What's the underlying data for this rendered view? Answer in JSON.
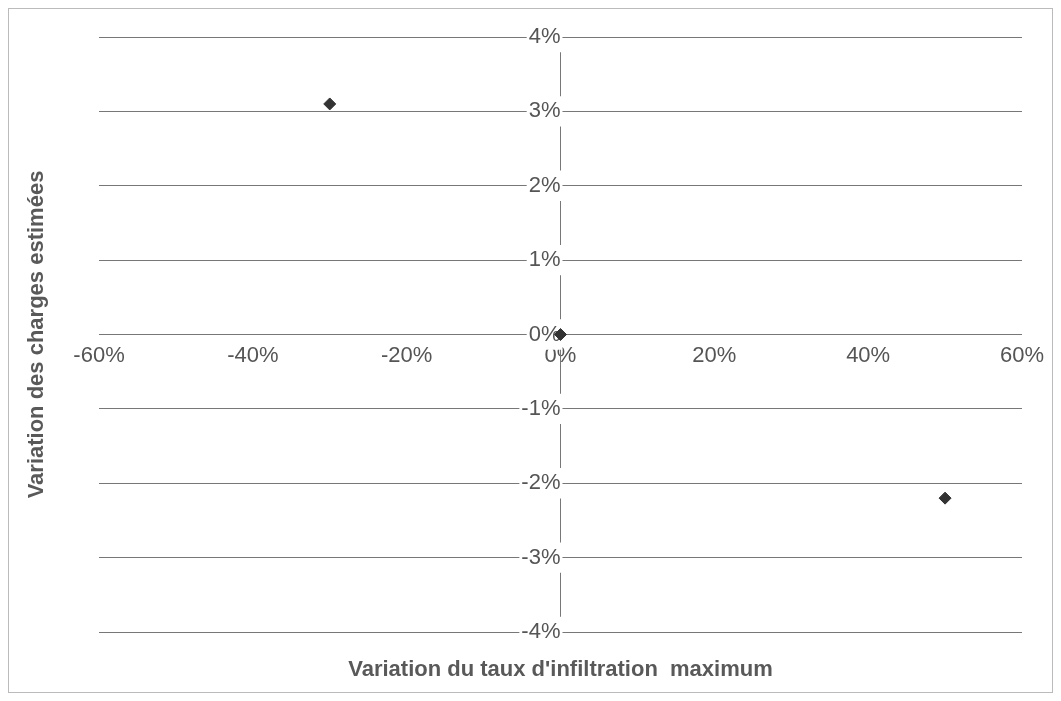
{
  "chart_data": {
    "type": "scatter",
    "xlabel": "Variation du taux d'infiltration  maximum",
    "ylabel": "Variation des charges estimées",
    "x": [
      -30,
      0,
      50
    ],
    "values": [
      3.1,
      0,
      -2.2
    ],
    "color": "#333333",
    "marker": "diamond",
    "grid": "y",
    "xlim": [
      -60,
      60
    ],
    "ylim": [
      -4,
      4
    ],
    "xticks": [
      {
        "value": -60,
        "label": "-60%"
      },
      {
        "value": -40,
        "label": "-40%"
      },
      {
        "value": -20,
        "label": "-20%"
      },
      {
        "value": 0,
        "label": "0%"
      },
      {
        "value": 20,
        "label": "20%"
      },
      {
        "value": 40,
        "label": "40%"
      },
      {
        "value": 60,
        "label": "60%"
      }
    ],
    "yticks": [
      {
        "value": -4,
        "label": "-4%"
      },
      {
        "value": -3,
        "label": "-3%"
      },
      {
        "value": -2,
        "label": "-2%"
      },
      {
        "value": -1,
        "label": "-1%"
      },
      {
        "value": 0,
        "label": "0%"
      },
      {
        "value": 1,
        "label": "1%"
      },
      {
        "value": 2,
        "label": "2%"
      },
      {
        "value": 3,
        "label": "3%"
      },
      {
        "value": 4,
        "label": "4%"
      }
    ]
  }
}
